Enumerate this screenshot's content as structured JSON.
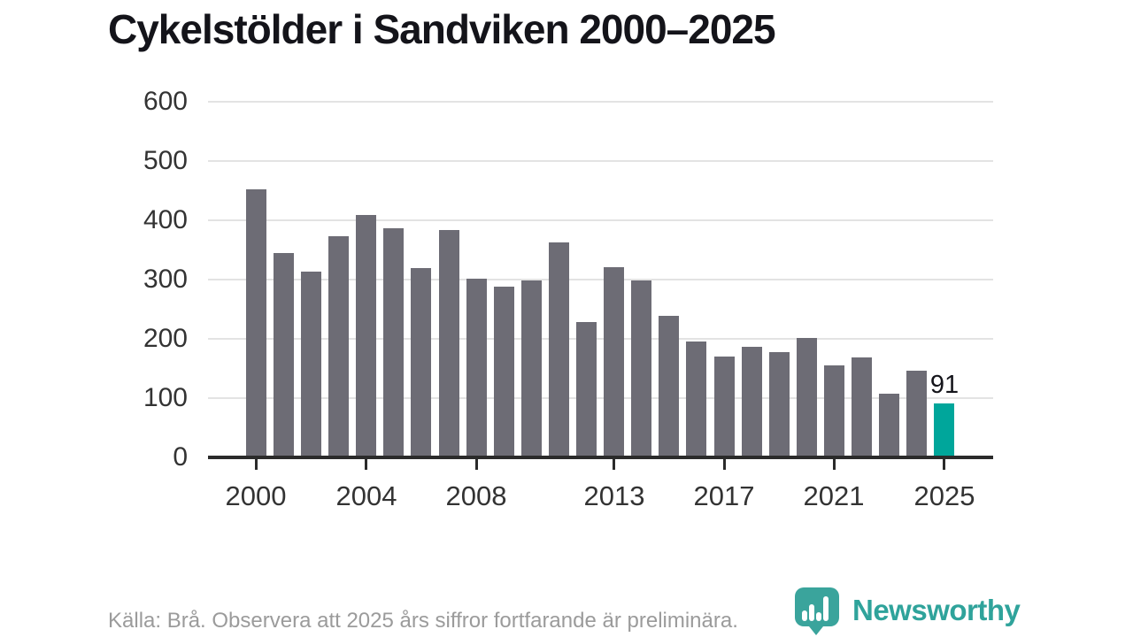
{
  "title": "Cykelstölder i Sandviken 2000–2025",
  "chart_data": {
    "type": "bar",
    "title": "Cykelstölder i Sandviken 2000–2025",
    "xlabel": "",
    "ylabel": "",
    "x": [
      2000,
      2001,
      2002,
      2003,
      2004,
      2005,
      2006,
      2007,
      2008,
      2009,
      2010,
      2011,
      2012,
      2013,
      2014,
      2015,
      2016,
      2017,
      2018,
      2019,
      2020,
      2021,
      2022,
      2023,
      2024,
      2025
    ],
    "values": [
      452,
      345,
      314,
      373,
      409,
      387,
      320,
      384,
      302,
      288,
      299,
      362,
      228,
      321,
      299,
      239,
      196,
      170,
      187,
      178,
      201,
      155,
      169,
      107,
      146,
      91
    ],
    "ylim": [
      0,
      600
    ],
    "y_ticks": [
      0,
      100,
      200,
      300,
      400,
      500,
      600
    ],
    "x_tick_years": [
      2000,
      2004,
      2008,
      2013,
      2017,
      2021,
      2025
    ],
    "grid": "horizontal",
    "legend": "none",
    "bar_color": "#6d6c75",
    "highlight_year": 2025,
    "highlight_color": "#00a69b",
    "annotation": {
      "year": 2025,
      "label": "91"
    }
  },
  "footer": {
    "source_text": "Källa: Brå. Observera att 2025 års siffror fortfarande är preliminära."
  },
  "logo": {
    "text": "Newsworthy",
    "icon": "newsworthy-bar-chart-badge-icon",
    "color": "#2fa39b",
    "icon_color": "#3aa49c"
  }
}
